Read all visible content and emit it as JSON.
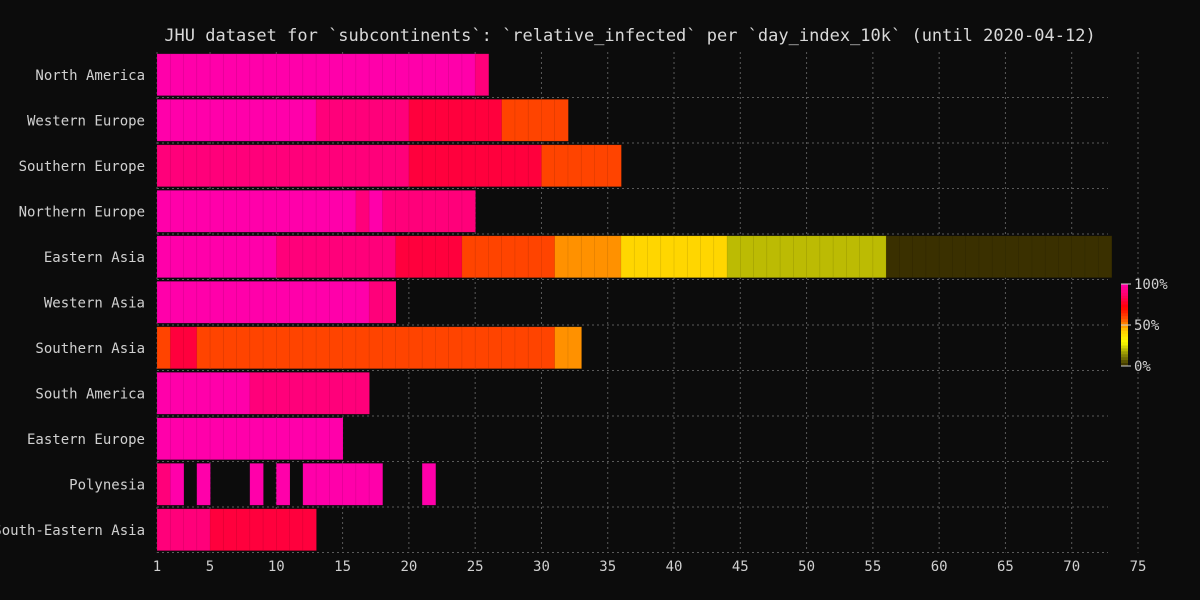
{
  "chart_data": {
    "type": "heatmap",
    "title": "JHU dataset for `subcontinents`: `relative_infected` per `day_index_10k` (until 2020-04-12)",
    "xlabel": "",
    "ylabel": "",
    "xlim": [
      1,
      75
    ],
    "x_ticks": [
      1,
      5,
      10,
      15,
      20,
      25,
      30,
      35,
      40,
      45,
      50,
      55,
      60,
      65,
      70,
      75
    ],
    "colorbar": {
      "ticks": [
        {
          "value": 1.0,
          "label": "100%"
        },
        {
          "value": 0.5,
          "label": "50%"
        },
        {
          "value": 0.0,
          "label": "0%"
        }
      ],
      "stops": [
        "#3a3000",
        "#8f8e05",
        "#ffff00",
        "#ffcc00",
        "#ff5500",
        "#ff0000",
        "#ff0066",
        "#ff00aa"
      ]
    },
    "categories": [
      "North America",
      "Western Europe",
      "Southern Europe",
      "Northern Europe",
      "Eastern Asia",
      "Western Asia",
      "Southern Asia",
      "South America",
      "Eastern Europe",
      "Polynesia",
      "South-Eastern Asia"
    ],
    "series": [
      {
        "name": "North America",
        "segments": [
          {
            "start": 1,
            "end": 24,
            "value": 1.0
          },
          {
            "start": 25,
            "end": 25,
            "value": 0.9
          }
        ]
      },
      {
        "name": "Western Europe",
        "segments": [
          {
            "start": 1,
            "end": 12,
            "value": 1.0
          },
          {
            "start": 13,
            "end": 19,
            "value": 0.9
          },
          {
            "start": 20,
            "end": 26,
            "value": 0.8
          },
          {
            "start": 27,
            "end": 31,
            "value": 0.6
          }
        ]
      },
      {
        "name": "Southern Europe",
        "segments": [
          {
            "start": 1,
            "end": 19,
            "value": 0.9
          },
          {
            "start": 20,
            "end": 29,
            "value": 0.8
          },
          {
            "start": 30,
            "end": 35,
            "value": 0.6
          }
        ]
      },
      {
        "name": "Northern Europe",
        "segments": [
          {
            "start": 1,
            "end": 15,
            "value": 1.0
          },
          {
            "start": 16,
            "end": 16,
            "value": 0.9
          },
          {
            "start": 17,
            "end": 17,
            "value": 1.0
          },
          {
            "start": 18,
            "end": 24,
            "value": 0.9
          }
        ]
      },
      {
        "name": "Eastern Asia",
        "segments": [
          {
            "start": 1,
            "end": 9,
            "value": 1.0
          },
          {
            "start": 10,
            "end": 18,
            "value": 0.9
          },
          {
            "start": 19,
            "end": 23,
            "value": 0.8
          },
          {
            "start": 24,
            "end": 30,
            "value": 0.6
          },
          {
            "start": 31,
            "end": 35,
            "value": 0.5
          },
          {
            "start": 36,
            "end": 43,
            "value": 0.4
          },
          {
            "start": 44,
            "end": 55,
            "value": 0.2
          },
          {
            "start": 56,
            "end": 72,
            "value": 0.0
          }
        ]
      },
      {
        "name": "Western Asia",
        "segments": [
          {
            "start": 1,
            "end": 16,
            "value": 1.0
          },
          {
            "start": 17,
            "end": 18,
            "value": 0.9
          }
        ]
      },
      {
        "name": "Southern Asia",
        "segments": [
          {
            "start": 1,
            "end": 1,
            "value": 0.6
          },
          {
            "start": 2,
            "end": 3,
            "value": 0.8
          },
          {
            "start": 4,
            "end": 30,
            "value": 0.6
          },
          {
            "start": 31,
            "end": 32,
            "value": 0.5
          }
        ]
      },
      {
        "name": "South America",
        "segments": [
          {
            "start": 1,
            "end": 7,
            "value": 1.0
          },
          {
            "start": 8,
            "end": 16,
            "value": 0.9
          }
        ]
      },
      {
        "name": "Eastern Europe",
        "segments": [
          {
            "start": 1,
            "end": 14,
            "value": 1.0
          }
        ]
      },
      {
        "name": "Polynesia",
        "segments": [
          {
            "start": 1,
            "end": 1,
            "value": 0.9
          },
          {
            "start": 2,
            "end": 2,
            "value": 1.0
          },
          {
            "start": 4,
            "end": 4,
            "value": 1.0
          },
          {
            "start": 8,
            "end": 8,
            "value": 1.0
          },
          {
            "start": 10,
            "end": 10,
            "value": 1.0
          },
          {
            "start": 12,
            "end": 17,
            "value": 1.0
          },
          {
            "start": 21,
            "end": 21,
            "value": 1.0
          }
        ]
      },
      {
        "name": "South-Eastern Asia",
        "segments": [
          {
            "start": 1,
            "end": 4,
            "value": 0.9
          },
          {
            "start": 5,
            "end": 12,
            "value": 0.8
          }
        ]
      }
    ]
  }
}
